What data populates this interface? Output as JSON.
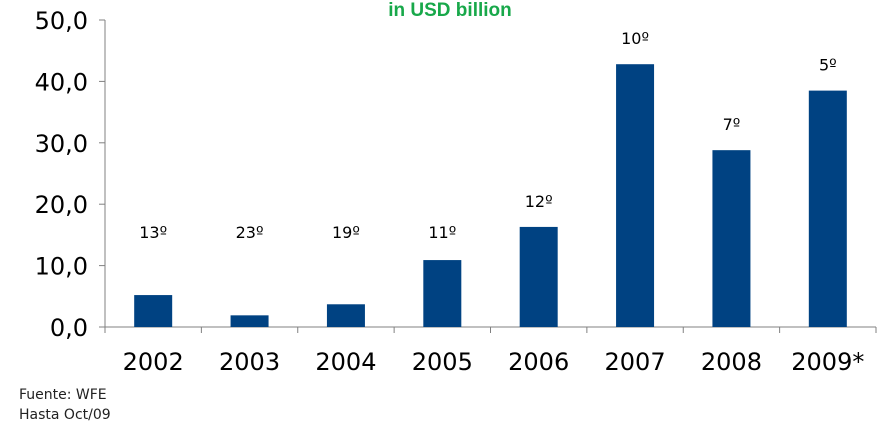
{
  "chart_data": {
    "type": "bar",
    "title": "",
    "subtitle": "in USD billion",
    "xlabel": "",
    "ylabel": "",
    "categories": [
      "2002",
      "2003",
      "2004",
      "2005",
      "2006",
      "2007",
      "2008",
      "2009*"
    ],
    "values": [
      5.2,
      1.9,
      3.7,
      10.9,
      16.3,
      42.8,
      28.8,
      38.5
    ],
    "bar_labels": [
      "13º",
      "23º",
      "19º",
      "11º",
      "12º",
      "10º",
      "7º",
      "5º"
    ],
    "ylim": [
      0,
      50
    ],
    "yticks": [
      "0,0",
      "10,0",
      "20,0",
      "30,0",
      "40,0",
      "50,0"
    ],
    "grid": false,
    "legend": "none",
    "bar_color": "#004282"
  },
  "source_note": {
    "line1": "Fuente: WFE",
    "line2": "Hasta Oct/09"
  }
}
